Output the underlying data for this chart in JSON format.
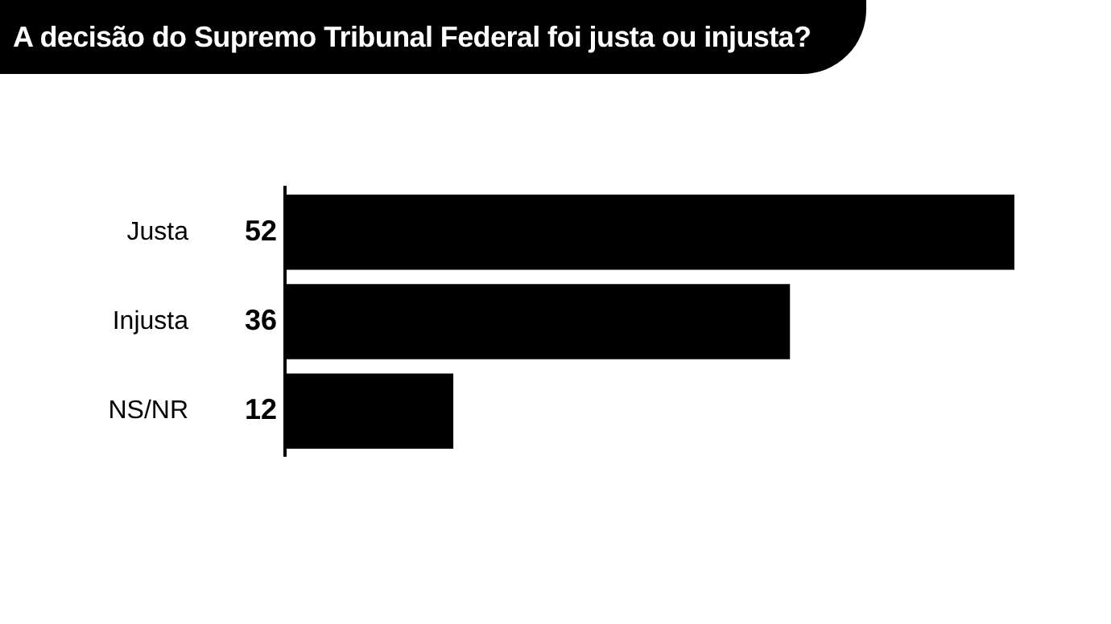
{
  "chart_data": {
    "type": "bar",
    "orientation": "horizontal",
    "title": "A decisão do Supremo Tribunal Federal foi justa ou injusta?",
    "categories": [
      "Justa",
      "Injusta",
      "NS/NR"
    ],
    "values": [
      52,
      36,
      12
    ],
    "color": "#000000",
    "data_labels": true
  }
}
